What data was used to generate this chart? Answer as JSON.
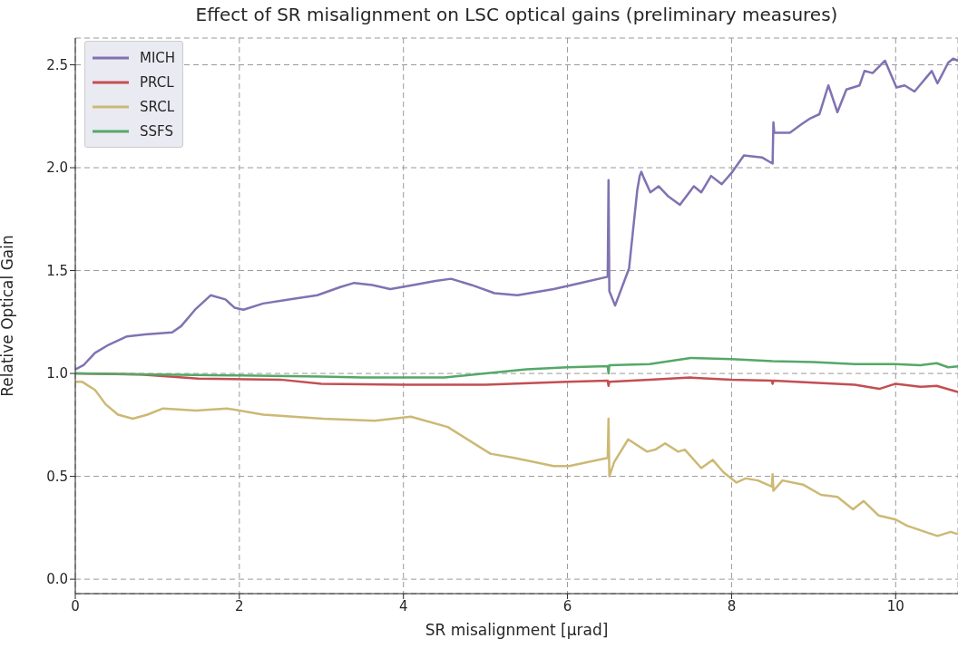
{
  "chart_data": {
    "type": "line",
    "title": "Effect of SR misalignment on LSC optical gains (preliminary measures)",
    "xlabel": "SR misalignment [μrad]",
    "ylabel": "Relative Optical Gain",
    "xlim": [
      0,
      10.76
    ],
    "ylim": [
      -0.07,
      2.63
    ],
    "xticks": [
      0,
      2,
      4,
      6,
      8,
      10
    ],
    "yticks": [
      {
        "value": 0,
        "label": "0.0"
      },
      {
        "value": 0.5,
        "label": "0.5"
      },
      {
        "value": 1,
        "label": "1.0"
      },
      {
        "value": 1.5,
        "label": "1.5"
      },
      {
        "value": 2,
        "label": "2.0"
      },
      {
        "value": 2.5,
        "label": "2.5"
      }
    ],
    "grid": true,
    "legend": "top left",
    "line_style": "solid",
    "marker": "none",
    "series": [
      {
        "name": "MICH",
        "color": "#8172b2",
        "x": [
          0,
          0.1,
          0.24,
          0.41,
          0.63,
          0.85,
          1.18,
          1.29,
          1.46,
          1.65,
          1.83,
          1.94,
          2.05,
          2.29,
          2.62,
          2.95,
          3.23,
          3.4,
          3.62,
          3.84,
          4.12,
          4.39,
          4.58,
          4.83,
          5.11,
          5.39,
          5.83,
          6.16,
          6.49,
          6.5,
          6.51,
          6.58,
          6.75,
          6.85,
          6.88,
          6.9,
          6.93,
          7.01,
          7.11,
          7.23,
          7.37,
          7.54,
          7.63,
          7.75,
          7.88,
          8.01,
          8.15,
          8.37,
          8.5,
          8.51,
          8.52,
          8.71,
          8.85,
          8.96,
          9.07,
          9.18,
          9.29,
          9.4,
          9.56,
          9.62,
          9.72,
          9.87,
          10.01,
          10.11,
          10.23,
          10.44,
          10.51,
          10.55,
          10.64,
          10.7,
          10.76
        ],
        "values": [
          1.02,
          1.04,
          1.1,
          1.14,
          1.18,
          1.19,
          1.2,
          1.23,
          1.31,
          1.38,
          1.36,
          1.32,
          1.31,
          1.34,
          1.36,
          1.38,
          1.42,
          1.44,
          1.43,
          1.41,
          1.43,
          1.45,
          1.46,
          1.43,
          1.39,
          1.38,
          1.41,
          1.44,
          1.47,
          1.94,
          1.4,
          1.33,
          1.51,
          1.89,
          1.96,
          1.98,
          1.95,
          1.88,
          1.91,
          1.86,
          1.82,
          1.91,
          1.88,
          1.96,
          1.92,
          1.98,
          2.06,
          2.05,
          2.02,
          2.22,
          2.17,
          2.17,
          2.21,
          2.24,
          2.26,
          2.4,
          2.27,
          2.38,
          2.4,
          2.47,
          2.46,
          2.52,
          2.39,
          2.4,
          2.37,
          2.47,
          2.41,
          2.44,
          2.51,
          2.53,
          2.52
        ]
      },
      {
        "name": "PRCL",
        "color": "#c44e52",
        "x": [
          0,
          0.8,
          1.5,
          2.5,
          3,
          4,
          5,
          6,
          6.49,
          6.5,
          6.51,
          7,
          7.5,
          8,
          8.49,
          8.5,
          8.51,
          9,
          9.5,
          9.8,
          10,
          10.3,
          10.5,
          10.76
        ],
        "values": [
          1.0,
          0.995,
          0.975,
          0.97,
          0.95,
          0.945,
          0.945,
          0.96,
          0.965,
          0.94,
          0.96,
          0.97,
          0.98,
          0.97,
          0.965,
          0.95,
          0.965,
          0.955,
          0.945,
          0.925,
          0.95,
          0.935,
          0.94,
          0.91
        ]
      },
      {
        "name": "SRCL",
        "color": "#ccb974",
        "x": [
          0,
          0.08,
          0.24,
          0.37,
          0.52,
          0.7,
          0.88,
          1.07,
          1.47,
          1.85,
          2.29,
          3.02,
          3.65,
          4.09,
          4.54,
          5.06,
          5.35,
          5.83,
          6.02,
          6.49,
          6.5,
          6.51,
          6.57,
          6.74,
          6.97,
          7.07,
          7.19,
          7.35,
          7.43,
          7.63,
          7.77,
          7.9,
          8.06,
          8.17,
          8.32,
          8.49,
          8.5,
          8.51,
          8.62,
          8.87,
          9.09,
          9.29,
          9.48,
          9.61,
          9.79,
          10,
          10.14,
          10.36,
          10.51,
          10.67,
          10.75
        ],
        "values": [
          0.96,
          0.96,
          0.92,
          0.85,
          0.8,
          0.78,
          0.8,
          0.83,
          0.82,
          0.83,
          0.8,
          0.78,
          0.77,
          0.79,
          0.74,
          0.61,
          0.59,
          0.55,
          0.55,
          0.59,
          0.78,
          0.5,
          0.57,
          0.68,
          0.62,
          0.63,
          0.66,
          0.62,
          0.63,
          0.54,
          0.58,
          0.52,
          0.47,
          0.49,
          0.48,
          0.45,
          0.51,
          0.43,
          0.48,
          0.46,
          0.41,
          0.4,
          0.34,
          0.38,
          0.31,
          0.29,
          0.26,
          0.23,
          0.21,
          0.23,
          0.22
        ]
      },
      {
        "name": "SSFS",
        "color": "#55a868",
        "x": [
          0,
          1,
          2,
          3,
          3.5,
          4.5,
          5,
          5.5,
          6,
          6.49,
          6.5,
          6.51,
          7,
          7.5,
          8,
          8.5,
          9,
          9.5,
          10,
          10.3,
          10.5,
          10.64,
          10.76
        ],
        "values": [
          1.0,
          0.995,
          0.99,
          0.985,
          0.98,
          0.98,
          1.0,
          1.02,
          1.03,
          1.035,
          1.0,
          1.04,
          1.045,
          1.075,
          1.07,
          1.06,
          1.055,
          1.045,
          1.045,
          1.04,
          1.05,
          1.03,
          1.035
        ]
      }
    ]
  }
}
